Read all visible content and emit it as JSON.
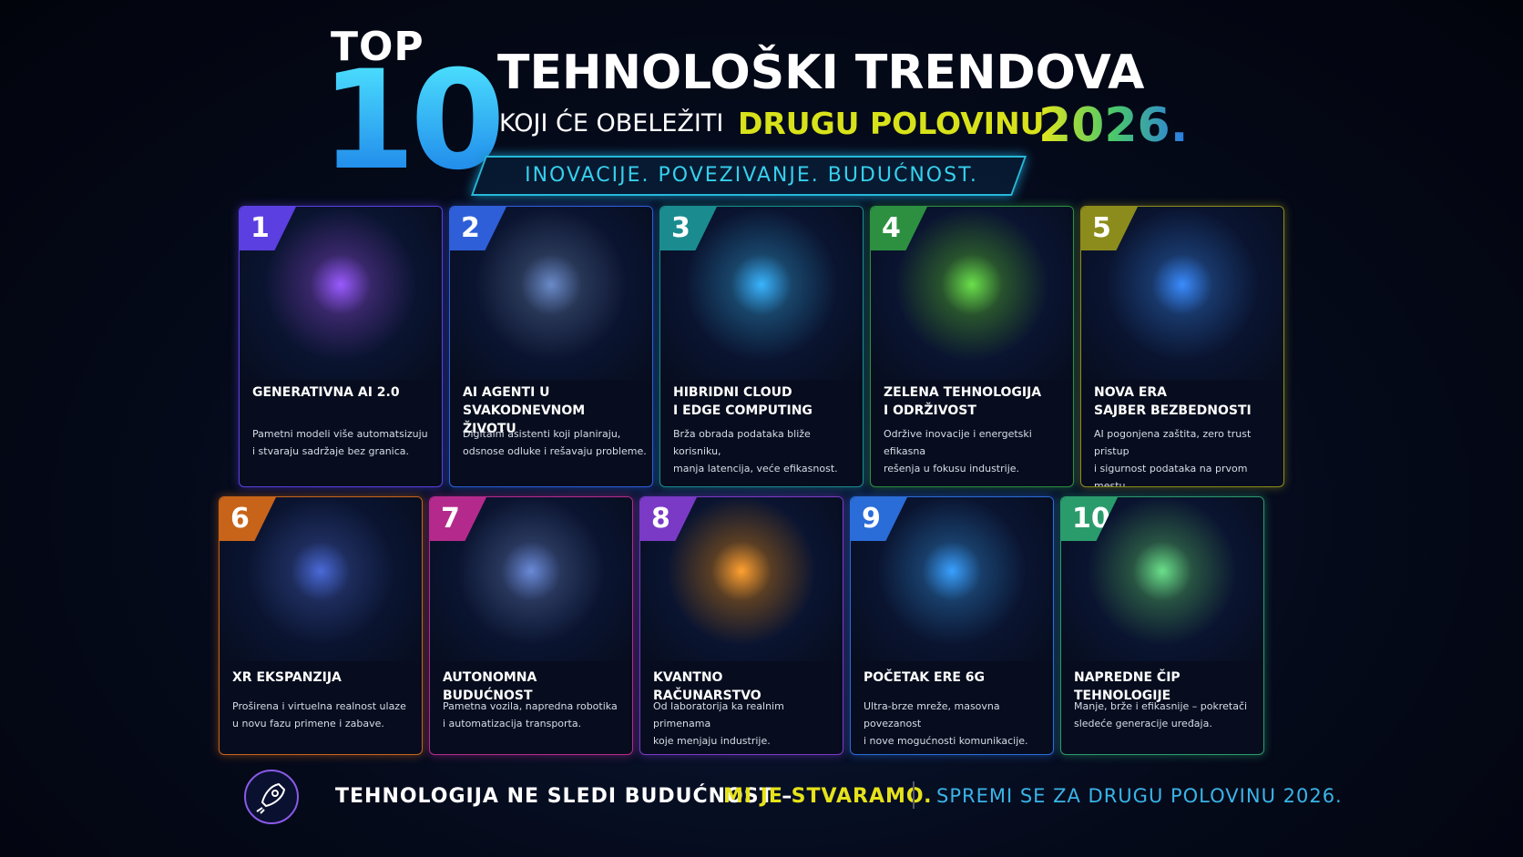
{
  "header": {
    "top": "TOP",
    "number": "10",
    "title": "TEHNOLOŠKI TRENDOVA",
    "subtitle": "KOJI ĆE OBELEŽITI",
    "highlight": "DRUGU POLOVINU",
    "year": "2026.",
    "tagline": "INOVACIJE. POVEZIVANJE. BUDUĆNOST."
  },
  "cards": [
    {
      "number": "1",
      "title": [
        "GENERATIVNA AI 2.0"
      ],
      "description": [
        "Pametni modeli više automatsizuju",
        "i stvaraju sadržaje bez granica."
      ]
    },
    {
      "number": "2",
      "title": [
        "AI AGENTI U SVAKODNEVNOM",
        "ŽIVOTU"
      ],
      "description": [
        "Digitalni asistenti koji planiraju,",
        "odsnose odluke i rešavaju probleme."
      ]
    },
    {
      "number": "3",
      "title": [
        "HIBRIDNI CLOUD",
        "I EDGE COMPUTING"
      ],
      "description": [
        "Brža obrada podataka bliže korisniku,",
        "manja latencija, veće efikasnost."
      ]
    },
    {
      "number": "4",
      "title": [
        "ZELENA TEHNOLOGIJA",
        "I ODRŽIVOST"
      ],
      "description": [
        "Održive inovacije i energetski efikasna",
        "rešenja u fokusu industrije."
      ]
    },
    {
      "number": "5",
      "title": [
        "NOVA ERA",
        "SAJBER BEZBEDNOSTI"
      ],
      "description": [
        "AI pogonjena zaštita, zero trust pristup",
        "i sigurnost podataka na prvom mestu."
      ]
    },
    {
      "number": "6",
      "title": [
        "XR EKSPANZIJA"
      ],
      "description": [
        "Proširena i virtuelna realnost ulaze",
        "u novu fazu primene i zabave."
      ]
    },
    {
      "number": "7",
      "title": [
        "AUTONOMNA BUDUĆNOST"
      ],
      "description": [
        "Pametna vozila, napredna robotika",
        "i automatizacija transporta."
      ]
    },
    {
      "number": "8",
      "title": [
        "KVANTNO RAČUNARSTVO"
      ],
      "description": [
        "Od laboratorija ka realnim primenama",
        "koje menjaju industrije."
      ]
    },
    {
      "number": "9",
      "title": [
        "POČETAK ERE 6G"
      ],
      "description": [
        "Ultra-brze mreže, masovna povezanost",
        "i nove mogućnosti komunikacije."
      ]
    },
    {
      "number": "10",
      "title": [
        "NAPREDNE ČIP TEHNOLOGIJE"
      ],
      "description": [
        "Manje, brže i efikasnije – pokretači",
        "sledeće generacije uređaja."
      ]
    }
  ],
  "footer": {
    "statement": "TEHNOLOGIJA NE SLEDI BUDUĆNOST –",
    "emphasis": "MI JE STVARAMO.",
    "call": "SPREMI SE ZA DRUGU POLOVINU 2026."
  }
}
